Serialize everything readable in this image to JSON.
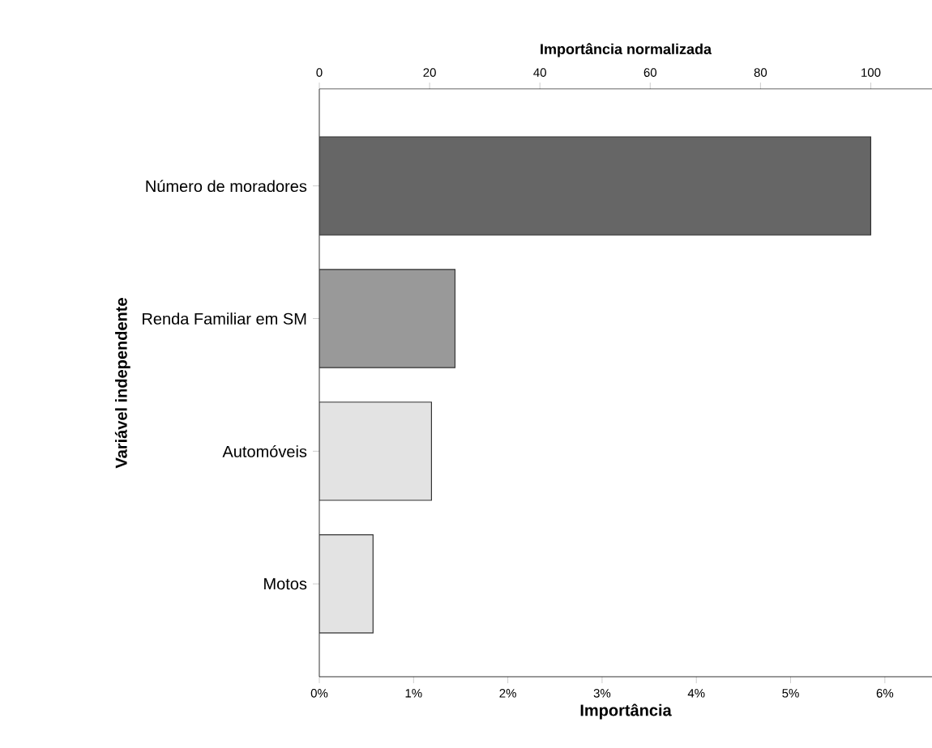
{
  "chart_data": {
    "type": "bar",
    "orientation": "horizontal",
    "xlabel": "Importância",
    "x2label": "Importância normalizada",
    "ylabel": "Variável independente",
    "categories": [
      "Número de moradores",
      "Renda Familiar em SM",
      "Automóveis",
      "Motos"
    ],
    "values": [
      5.85,
      1.44,
      1.19,
      0.57
    ],
    "colors": [
      "#666666",
      "#999999",
      "#e3e3e3",
      "#e3e3e3"
    ],
    "xlim": [
      0,
      6.5
    ],
    "xticks": [
      {
        "value": 0,
        "label": "0%"
      },
      {
        "value": 1,
        "label": "1%"
      },
      {
        "value": 2,
        "label": "2%"
      },
      {
        "value": 3,
        "label": "3%"
      },
      {
        "value": 4,
        "label": "4%"
      },
      {
        "value": 5,
        "label": "5%"
      },
      {
        "value": 6,
        "label": "6%"
      }
    ],
    "x2lim": [
      0,
      111.1
    ],
    "x2ticks": [
      0,
      20,
      40,
      60,
      80,
      100
    ]
  }
}
